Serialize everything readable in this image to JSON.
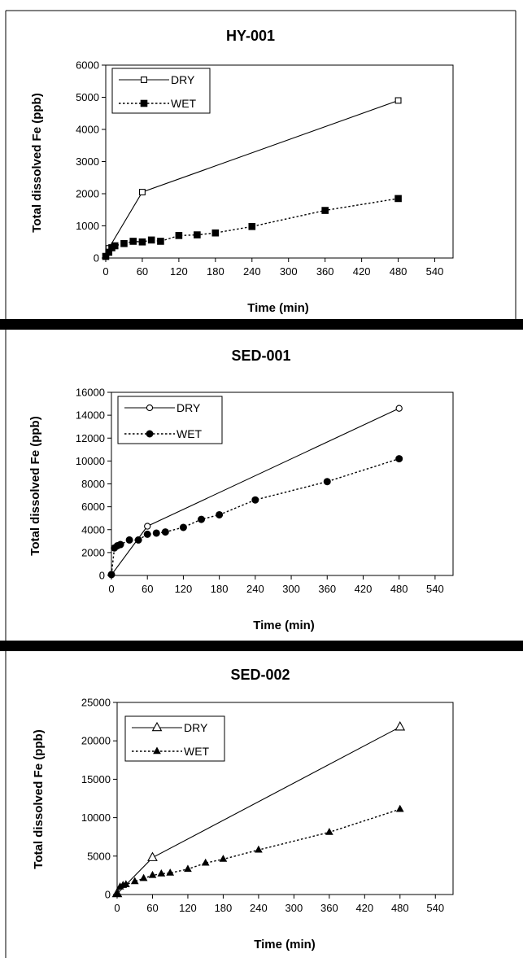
{
  "chart_data": [
    {
      "type": "line",
      "title": "HY-001",
      "xlabel": "Time (min)",
      "ylabel": "Total dissolved Fe (ppb)",
      "xlim": [
        0,
        570
      ],
      "ylim": [
        0,
        6000
      ],
      "xticks": [
        0,
        60,
        120,
        180,
        240,
        300,
        360,
        420,
        480,
        540
      ],
      "yticks": [
        0,
        1000,
        2000,
        3000,
        4000,
        5000,
        6000
      ],
      "legend": "top-left",
      "grid": false,
      "marker_shape": "square",
      "series": [
        {
          "name": "DRY",
          "line": "solid",
          "marker_fill": "open",
          "x": [
            0,
            5,
            60,
            480
          ],
          "y": [
            50,
            300,
            2050,
            4900
          ]
        },
        {
          "name": "WET",
          "line": "dotted",
          "marker_fill": "filled",
          "x": [
            0,
            5,
            10,
            15,
            30,
            45,
            60,
            75,
            90,
            120,
            150,
            180,
            240,
            360,
            480
          ],
          "y": [
            50,
            180,
            320,
            380,
            450,
            520,
            500,
            560,
            520,
            700,
            720,
            780,
            980,
            1480,
            1850
          ]
        }
      ]
    },
    {
      "type": "line",
      "title": "SED-001",
      "xlabel": "Time (min)",
      "ylabel": "Total dissolved Fe (ppb)",
      "xlim": [
        0,
        570
      ],
      "ylim": [
        0,
        16000
      ],
      "xticks": [
        0,
        60,
        120,
        180,
        240,
        300,
        360,
        420,
        480,
        540
      ],
      "yticks": [
        0,
        2000,
        4000,
        6000,
        8000,
        10000,
        12000,
        14000,
        16000
      ],
      "legend": "top-left",
      "grid": false,
      "marker_shape": "circle",
      "series": [
        {
          "name": "DRY",
          "line": "solid",
          "marker_fill": "open",
          "x": [
            0,
            60,
            480
          ],
          "y": [
            50,
            4300,
            14600
          ]
        },
        {
          "name": "WET",
          "line": "dotted",
          "marker_fill": "filled",
          "x": [
            0,
            5,
            10,
            15,
            30,
            45,
            60,
            75,
            90,
            120,
            150,
            180,
            240,
            360,
            480
          ],
          "y": [
            80,
            2400,
            2600,
            2700,
            3100,
            3100,
            3600,
            3700,
            3800,
            4200,
            4900,
            5300,
            6600,
            8200,
            10200
          ]
        }
      ]
    },
    {
      "type": "line",
      "title": "SED-002",
      "xlabel": "Time (min)",
      "ylabel": "Total dissolved Fe (ppb)",
      "xlim": [
        0,
        570
      ],
      "ylim": [
        0,
        25000
      ],
      "xticks": [
        0,
        60,
        120,
        180,
        240,
        300,
        360,
        420,
        480,
        540
      ],
      "yticks": [
        0,
        5000,
        10000,
        15000,
        20000,
        25000
      ],
      "legend": "top-left",
      "grid": false,
      "marker_shape": "triangle",
      "series": [
        {
          "name": "DRY",
          "line": "solid",
          "marker_fill": "open",
          "x": [
            0,
            60,
            480
          ],
          "y": [
            100,
            4800,
            21800
          ]
        },
        {
          "name": "WET",
          "line": "dotted",
          "marker_fill": "filled",
          "x": [
            0,
            5,
            10,
            15,
            30,
            45,
            60,
            75,
            90,
            120,
            150,
            180,
            240,
            360,
            480
          ],
          "y": [
            50,
            1000,
            1200,
            1300,
            1700,
            2100,
            2500,
            2700,
            2800,
            3300,
            4100,
            4600,
            5800,
            8100,
            11100
          ]
        }
      ]
    }
  ],
  "colors": {
    "line": "#000000",
    "background": "#ffffff",
    "frame": "#000000",
    "separator": "#000000"
  }
}
